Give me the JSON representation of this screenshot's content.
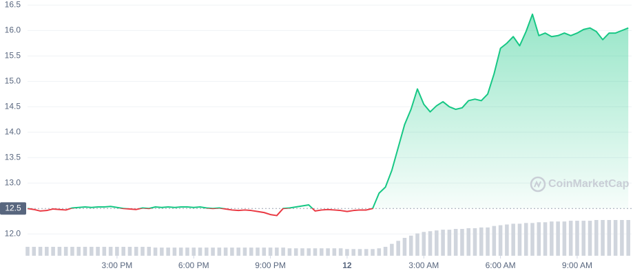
{
  "chart_data": {
    "type": "line",
    "watermark": "CoinMarketCap",
    "baseline": 12.5,
    "x": [
      11.5,
      11.75,
      12,
      12.25,
      12.5,
      12.75,
      13,
      13.25,
      13.5,
      13.75,
      14,
      14.25,
      14.5,
      14.75,
      15,
      15.25,
      15.5,
      15.75,
      16,
      16.25,
      16.5,
      16.75,
      17,
      17.25,
      17.5,
      17.75,
      18,
      18.25,
      18.5,
      18.75,
      19,
      19.25,
      19.5,
      19.75,
      20,
      20.25,
      20.5,
      20.75,
      21,
      21.25,
      21.5,
      21.75,
      22,
      22.25,
      22.5,
      22.75,
      23,
      23.25,
      23.5,
      23.75,
      24,
      24.25,
      24.5,
      24.75,
      25,
      25.25,
      25.5,
      25.75,
      26,
      26.25,
      26.5,
      26.75,
      27,
      27.25,
      27.5,
      27.75,
      28,
      28.25,
      28.5,
      28.75,
      29,
      29.25,
      29.5,
      29.75,
      30,
      30.25,
      30.5,
      30.75,
      31,
      31.25,
      31.5,
      31.75,
      32,
      32.25,
      32.5,
      32.75,
      33,
      33.25,
      33.5,
      33.75,
      34,
      34.25,
      34.5,
      34.75,
      35
    ],
    "values": [
      12.5,
      12.48,
      12.45,
      12.46,
      12.49,
      12.48,
      12.47,
      12.51,
      12.52,
      12.53,
      12.52,
      12.53,
      12.53,
      12.54,
      12.52,
      12.5,
      12.49,
      12.48,
      12.51,
      12.5,
      12.53,
      12.52,
      12.53,
      12.52,
      12.53,
      12.53,
      12.52,
      12.53,
      12.51,
      12.5,
      12.51,
      12.49,
      12.47,
      12.46,
      12.47,
      12.46,
      12.44,
      12.42,
      12.38,
      12.36,
      12.5,
      12.51,
      12.53,
      12.55,
      12.57,
      12.45,
      12.47,
      12.48,
      12.47,
      12.46,
      12.44,
      12.46,
      12.47,
      12.47,
      12.5,
      12.8,
      12.92,
      13.25,
      13.7,
      14.15,
      14.45,
      14.85,
      14.55,
      14.4,
      14.52,
      14.6,
      14.5,
      14.45,
      14.48,
      14.62,
      14.65,
      14.62,
      14.75,
      15.15,
      15.65,
      15.75,
      15.88,
      15.7,
      15.98,
      16.32,
      15.9,
      15.95,
      15.88,
      15.9,
      15.95,
      15.9,
      15.95,
      16.02,
      16.05,
      15.98,
      15.82,
      15.95,
      15.95,
      16.0,
      16.05
    ],
    "volume": [
      12,
      12,
      12,
      12,
      12,
      12,
      12,
      12,
      12,
      12,
      12,
      12,
      12,
      12,
      12,
      12,
      12,
      12,
      12,
      12,
      11,
      11,
      11,
      11,
      11,
      11,
      11,
      11,
      11,
      11,
      11,
      11,
      11,
      11,
      11,
      11,
      11,
      11,
      11,
      11,
      11,
      10,
      10,
      10,
      10,
      10,
      10,
      10,
      10,
      10,
      9,
      9,
      9,
      9,
      9,
      10,
      12,
      16,
      20,
      24,
      27,
      30,
      32,
      33,
      34,
      35,
      35,
      36,
      36,
      37,
      37,
      38,
      38,
      40,
      41,
      42,
      43,
      43,
      44,
      44,
      45,
      45,
      46,
      46,
      46,
      47,
      47,
      47,
      47,
      48,
      48,
      48,
      48,
      48,
      48
    ],
    "color_up": "#16c784",
    "color_down": "#ea3943",
    "volume_color": "#d0d5dd",
    "xlim": [
      11.5,
      35.13
    ],
    "xticks": [
      {
        "value": 15,
        "label": "3:00 PM"
      },
      {
        "value": 18,
        "label": "6:00 PM"
      },
      {
        "value": 21,
        "label": "9:00 PM"
      },
      {
        "value": 24,
        "label": "12"
      },
      {
        "value": 27,
        "label": "3:00 AM"
      },
      {
        "value": 30,
        "label": "6:00 AM"
      },
      {
        "value": 33,
        "label": "9:00 AM"
      }
    ],
    "ylim": [
      11.57,
      16.6
    ],
    "yticks": [
      {
        "value": 12,
        "label": "12.0"
      },
      {
        "value": 13,
        "label": "13.0"
      },
      13.5,
      {
        "value": 14,
        "label": "14.0"
      },
      14.5,
      {
        "value": 15,
        "label": "15.0"
      },
      15.5,
      {
        "value": 16,
        "label": "16.0"
      },
      16.5
    ],
    "grid": true
  }
}
